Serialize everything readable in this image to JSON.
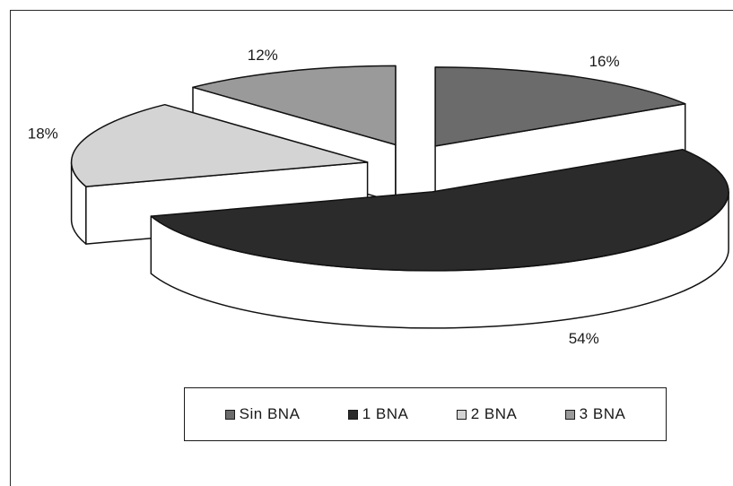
{
  "chart_data": {
    "type": "pie",
    "title": "",
    "slices": [
      {
        "label": "Sin BNA",
        "value": 16,
        "value_label": "16%",
        "color": "#6b6b6b"
      },
      {
        "label": "1 BNA",
        "value": 54,
        "value_label": "54%",
        "color": "#2b2b2b"
      },
      {
        "label": "2 BNA",
        "value": 18,
        "value_label": "18%",
        "color": "#d4d4d4"
      },
      {
        "label": "3 BNA",
        "value": 12,
        "value_label": "12%",
        "color": "#9a9a9a"
      }
    ],
    "style": "3d-exploded",
    "legend_position": "bottom"
  }
}
